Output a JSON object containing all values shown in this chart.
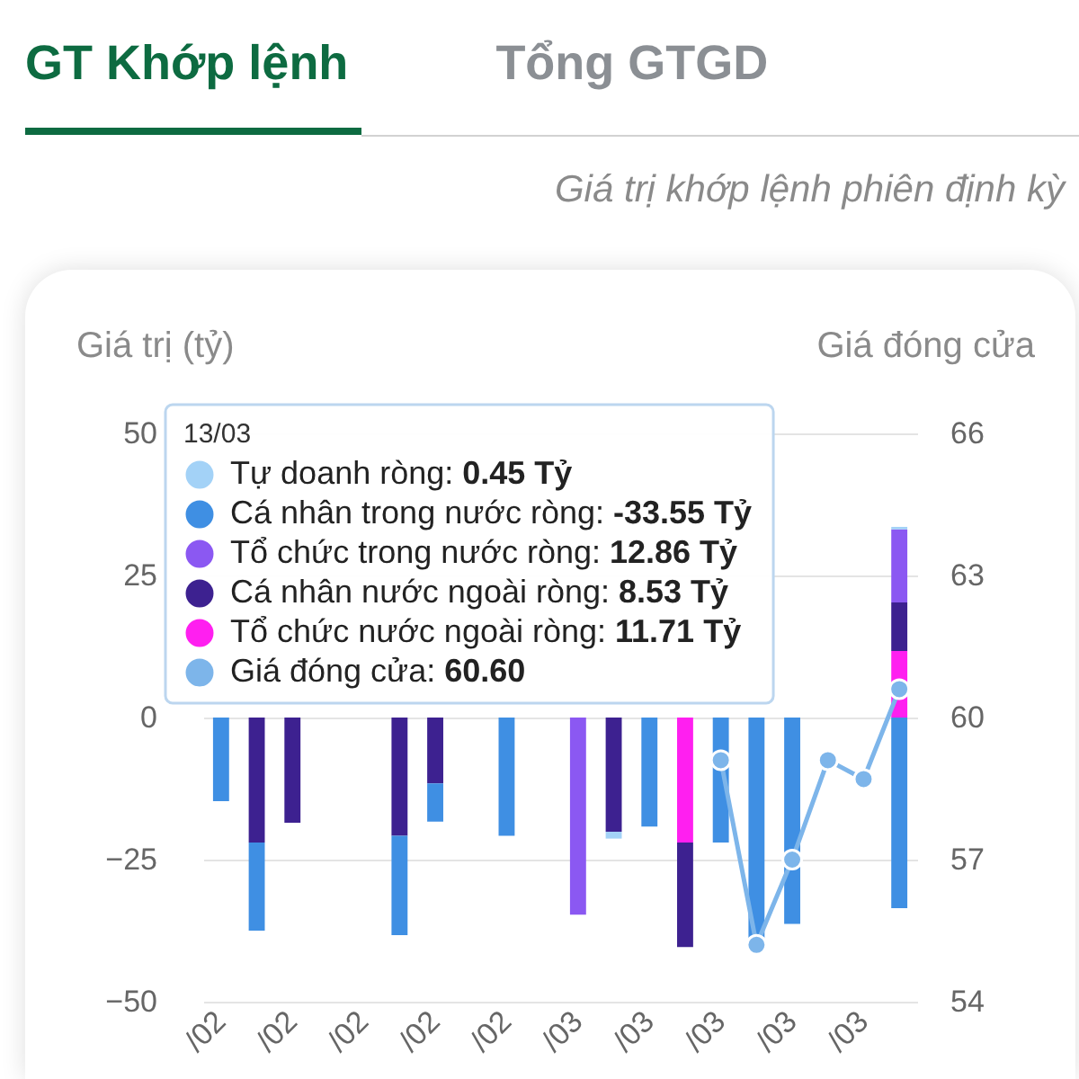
{
  "chart_data": {
    "type": "bar",
    "title": "GT Khớp lệnh",
    "subtitle": "Giá trị khớp lệnh phiên định kỳ",
    "annotations": [
      "Tổng GTGD",
      "0.45 Tỷ",
      "-33.55 Tỷ",
      "12.86 Tỷ",
      "8.53 Tỷ",
      "11.71 Tỷ",
      "60.60"
    ],
    "ylabel": "Giá trị (tỷ)",
    "y2label": "Giá đóng cửa",
    "legend_title": "13/03",
    "categories": [
      "/02",
      null,
      "/02",
      null,
      "/02",
      null,
      "/02",
      null,
      "/02",
      null,
      "/03",
      null,
      "/03",
      null,
      "/03",
      null,
      "/03",
      null,
      "/03",
      null
    ],
    "stacked": true,
    "series": [
      {
        "name": "Tổ chức nước ngoài ròng:",
        "color": "#ff1ff0",
        "values": [
          null,
          null,
          null,
          null,
          null,
          null,
          null,
          null,
          null,
          null,
          null,
          null,
          null,
          -22.0,
          null,
          null,
          null,
          null,
          null,
          11.71
        ]
      },
      {
        "name": "Cá nhân nước ngoài ròng:",
        "color": "#3d2190",
        "values": [
          null,
          -22.0,
          -18.5,
          null,
          null,
          -20.8,
          -11.6,
          null,
          null,
          null,
          null,
          -20.1,
          null,
          -18.4,
          null,
          null,
          null,
          null,
          null,
          8.53
        ]
      },
      {
        "name": "Tổ chức trong nước ròng:",
        "color": "#8b58f2",
        "values": [
          null,
          null,
          null,
          null,
          null,
          null,
          null,
          null,
          null,
          null,
          -34.7,
          null,
          null,
          null,
          null,
          null,
          null,
          null,
          null,
          12.86
        ]
      },
      {
        "name": "Cá nhân trong nước ròng:",
        "color": "#3f8fe3",
        "values": [
          -14.7,
          -15.5,
          null,
          null,
          null,
          -17.5,
          -6.7,
          null,
          -20.8,
          null,
          null,
          null,
          -19.2,
          null,
          -22.0,
          -39.5,
          -36.3,
          null,
          null,
          -33.55
        ]
      },
      {
        "name": "Tự doanh ròng:",
        "color": "#a3d2f7",
        "values": [
          null,
          null,
          null,
          null,
          null,
          null,
          null,
          null,
          null,
          null,
          null,
          -1.2,
          null,
          null,
          null,
          null,
          null,
          null,
          null,
          0.45
        ]
      },
      {
        "name": "Giá đóng cửa:",
        "type": "line",
        "axis": "y2",
        "color": "#7db5ea",
        "values": [
          null,
          null,
          null,
          null,
          null,
          null,
          null,
          null,
          null,
          null,
          null,
          null,
          null,
          null,
          59.1,
          55.2,
          57.0,
          59.1,
          58.7,
          60.6
        ]
      }
    ],
    "ylim": [
      -50,
      50
    ],
    "yticks": [
      -50,
      -25,
      0,
      25,
      50
    ],
    "y2lim": [
      54,
      66
    ],
    "y2ticks": [
      54,
      57,
      60,
      63,
      66
    ],
    "grid": "y",
    "legend": "top left",
    "marker": "circle",
    "line_style": "solid"
  }
}
